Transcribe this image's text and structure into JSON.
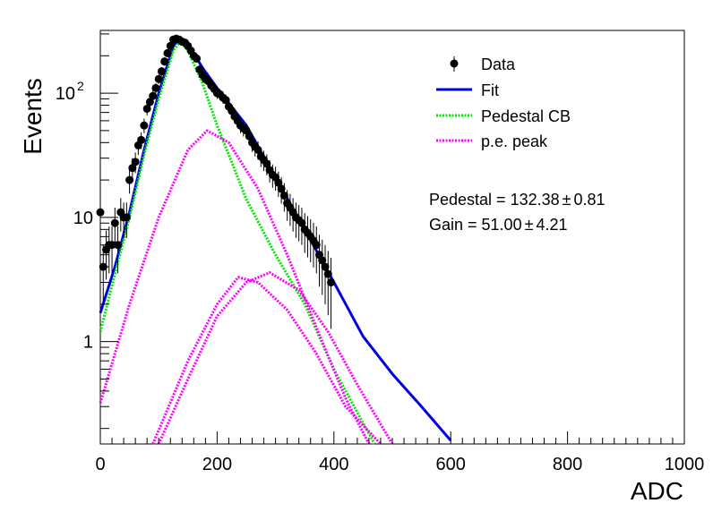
{
  "chart_data": {
    "type": "scatter",
    "xlabel": "ADC",
    "ylabel": "Events",
    "xlim": [
      0,
      1000
    ],
    "ylim": [
      0.15,
      320
    ],
    "yscale": "log",
    "x_ticks": [
      {
        "v": 0,
        "label": "0"
      },
      {
        "v": 200,
        "label": "200"
      },
      {
        "v": 400,
        "label": "400"
      },
      {
        "v": 600,
        "label": "600"
      },
      {
        "v": 800,
        "label": "800"
      },
      {
        "v": 1000,
        "label": "1000"
      }
    ],
    "y_ticks": [
      {
        "v": 1,
        "label": "1"
      },
      {
        "v": 10,
        "label": "10"
      },
      {
        "v": 100,
        "label": "10",
        "sup": "2"
      }
    ],
    "legend_position": "top-right",
    "legend": [
      {
        "label": "Data",
        "kind": "marker",
        "color": "#000000"
      },
      {
        "label": "Fit",
        "kind": "solid",
        "color": "#0000e6"
      },
      {
        "label": "Pedestal CB",
        "kind": "dotted",
        "color": "#00e600"
      },
      {
        "label": "p.e. peak",
        "kind": "dotted",
        "color": "#ff00ff"
      }
    ],
    "annotations": [
      {
        "text": "Pedestal = 132.38",
        "pm": "±",
        "value": "0.81"
      },
      {
        "text": "Gain = 51.00",
        "pm": "±",
        "value": "4.21"
      }
    ],
    "data_points": [
      [
        0,
        11
      ],
      [
        5,
        4
      ],
      [
        10,
        5.5
      ],
      [
        15,
        6
      ],
      [
        20,
        6
      ],
      [
        25,
        9
      ],
      [
        30,
        6
      ],
      [
        35,
        11
      ],
      [
        40,
        10
      ],
      [
        45,
        10
      ],
      [
        50,
        20
      ],
      [
        55,
        25
      ],
      [
        60,
        28
      ],
      [
        65,
        38
      ],
      [
        70,
        42
      ],
      [
        75,
        55
      ],
      [
        80,
        75
      ],
      [
        85,
        85
      ],
      [
        90,
        95
      ],
      [
        95,
        110
      ],
      [
        100,
        130
      ],
      [
        105,
        150
      ],
      [
        110,
        180
      ],
      [
        115,
        210
      ],
      [
        120,
        240
      ],
      [
        125,
        270
      ],
      [
        130,
        275
      ],
      [
        135,
        270
      ],
      [
        140,
        260
      ],
      [
        145,
        255
      ],
      [
        150,
        240
      ],
      [
        155,
        220
      ],
      [
        160,
        200
      ],
      [
        165,
        190
      ],
      [
        170,
        155
      ],
      [
        175,
        140
      ],
      [
        180,
        130
      ],
      [
        185,
        125
      ],
      [
        190,
        115
      ],
      [
        195,
        108
      ],
      [
        200,
        100
      ],
      [
        205,
        98
      ],
      [
        210,
        92
      ],
      [
        215,
        88
      ],
      [
        220,
        78
      ],
      [
        225,
        72
      ],
      [
        230,
        65
      ],
      [
        235,
        60
      ],
      [
        240,
        55
      ],
      [
        245,
        52
      ],
      [
        250,
        50
      ],
      [
        255,
        45
      ],
      [
        260,
        40
      ],
      [
        265,
        37
      ],
      [
        270,
        35
      ],
      [
        275,
        31
      ],
      [
        280,
        29
      ],
      [
        285,
        27
      ],
      [
        290,
        24
      ],
      [
        295,
        22
      ],
      [
        300,
        21
      ],
      [
        305,
        19
      ],
      [
        310,
        17
      ],
      [
        315,
        15
      ],
      [
        320,
        13
      ],
      [
        325,
        12
      ],
      [
        330,
        11
      ],
      [
        335,
        10
      ],
      [
        340,
        9.5
      ],
      [
        345,
        9
      ],
      [
        350,
        8
      ],
      [
        355,
        7.5
      ],
      [
        360,
        7
      ],
      [
        365,
        6.5
      ],
      [
        370,
        6
      ],
      [
        375,
        5
      ],
      [
        380,
        4.5
      ],
      [
        385,
        4
      ],
      [
        390,
        3.5
      ],
      [
        395,
        3
      ]
    ],
    "series": [
      {
        "name": "Fit",
        "color": "#0000e6",
        "style": "solid",
        "points": [
          [
            0,
            1.7
          ],
          [
            25,
            4
          ],
          [
            50,
            11
          ],
          [
            75,
            35
          ],
          [
            100,
            100
          ],
          [
            125,
            240
          ],
          [
            137,
            280
          ],
          [
            150,
            250
          ],
          [
            175,
            160
          ],
          [
            200,
            110
          ],
          [
            250,
            55
          ],
          [
            300,
            21
          ],
          [
            350,
            8
          ],
          [
            400,
            3.0
          ],
          [
            450,
            1.1
          ],
          [
            500,
            0.55
          ],
          [
            550,
            0.3
          ],
          [
            600,
            0.16
          ]
        ]
      },
      {
        "name": "Pedestal CB",
        "color": "#00e600",
        "style": "dotted",
        "points": [
          [
            0,
            1.2
          ],
          [
            25,
            3.5
          ],
          [
            50,
            10
          ],
          [
            75,
            32
          ],
          [
            100,
            90
          ],
          [
            125,
            220
          ],
          [
            137,
            260
          ],
          [
            150,
            220
          ],
          [
            175,
            120
          ],
          [
            200,
            55
          ],
          [
            250,
            14
          ],
          [
            300,
            5
          ],
          [
            350,
            2
          ],
          [
            400,
            0.6
          ],
          [
            450,
            0.22
          ],
          [
            470,
            0.15
          ]
        ]
      },
      {
        "name": "p.e. peak",
        "color": "#ff00ff",
        "style": "dotted",
        "points": [
          [
            0,
            0.32
          ],
          [
            50,
            2
          ],
          [
            100,
            10
          ],
          [
            150,
            35
          ],
          [
            183,
            50
          ],
          [
            220,
            40
          ],
          [
            270,
            17
          ],
          [
            320,
            5
          ],
          [
            370,
            1.3
          ],
          [
            420,
            0.35
          ],
          [
            460,
            0.15
          ]
        ]
      },
      {
        "name": "p.e. peak",
        "color": "#ff00ff",
        "style": "dotted",
        "points": [
          [
            90,
            0.15
          ],
          [
            150,
            0.7
          ],
          [
            200,
            2
          ],
          [
            236,
            3.3
          ],
          [
            270,
            3
          ],
          [
            320,
            1.8
          ],
          [
            370,
            0.8
          ],
          [
            420,
            0.3
          ],
          [
            480,
            0.15
          ]
        ]
      },
      {
        "name": "p.e. peak",
        "color": "#ff00ff",
        "style": "dotted",
        "points": [
          [
            100,
            0.15
          ],
          [
            150,
            0.5
          ],
          [
            200,
            1.6
          ],
          [
            250,
            3
          ],
          [
            290,
            3.6
          ],
          [
            340,
            2.6
          ],
          [
            390,
            1.2
          ],
          [
            440,
            0.45
          ],
          [
            500,
            0.15
          ]
        ]
      }
    ]
  }
}
